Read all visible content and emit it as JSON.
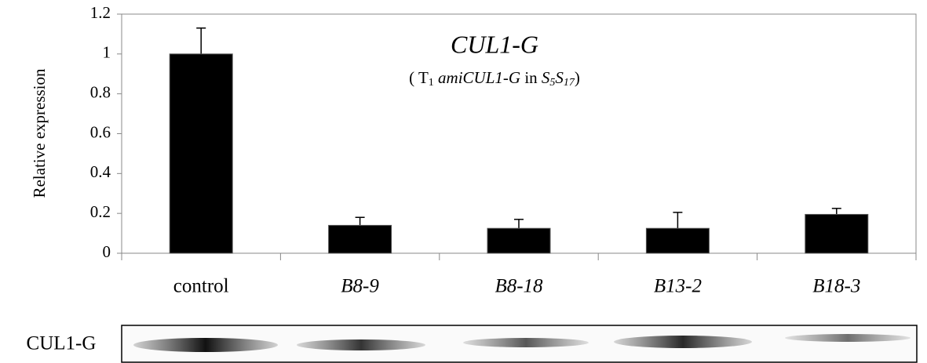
{
  "chart_data": {
    "type": "bar",
    "title": "CUL1-G",
    "subtitle": [
      "( T",
      "1",
      " amiCUL1-G",
      " in ",
      "S",
      "5",
      "S",
      "17",
      ")"
    ],
    "y_label": "Relative expression",
    "categories": [
      "control",
      "B8-9",
      "B8-18",
      "B13-2",
      "B18-3"
    ],
    "values": [
      1.0,
      0.14,
      0.125,
      0.125,
      0.195
    ],
    "errors": [
      0.13,
      0.04,
      0.045,
      0.08,
      0.03
    ],
    "color": "#000000",
    "ylim": [
      0,
      1.2
    ],
    "yticks": [
      0,
      0.2,
      0.4,
      0.6,
      0.8,
      1,
      1.2
    ]
  },
  "blot": {
    "label": "CUL1-G"
  }
}
